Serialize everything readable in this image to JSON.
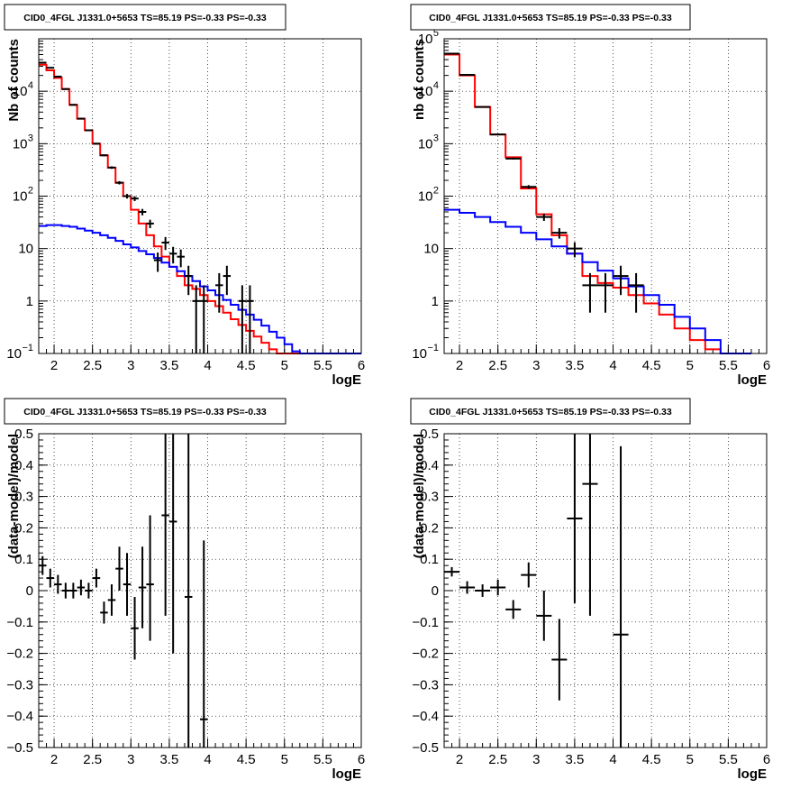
{
  "chart_data": [
    {
      "type": "step",
      "title": "CID0_4FGL J1331.0+5653 TS=85.19 PS=-0.33 PS=-0.33",
      "xlabel": "logE",
      "ylabel": "Nb of counts",
      "xlim": [
        1.8,
        6.0
      ],
      "ylim": [
        0.1,
        100000
      ],
      "ylog": true,
      "grid": true,
      "x_ticks": [
        2,
        2.5,
        3,
        3.5,
        4,
        4.5,
        5,
        5.5,
        6
      ],
      "x_tick_labels": [
        "2",
        "2.5",
        "3",
        "3.5",
        "4",
        "4.5",
        "5",
        "5.5",
        "6"
      ],
      "y_ticks": [
        0.1,
        1,
        10,
        100,
        1000,
        10000
      ],
      "y_tick_labels": [
        {
          "base": "10",
          "exp": "−1"
        },
        {
          "base": "1",
          "exp": ""
        },
        {
          "base": "10",
          "exp": ""
        },
        {
          "base": "10",
          "exp": "2"
        },
        {
          "base": "10",
          "exp": "3"
        },
        {
          "base": "10",
          "exp": "4"
        }
      ],
      "bin_edges": [
        1.8,
        1.9,
        2.0,
        2.1,
        2.2,
        2.3,
        2.4,
        2.5,
        2.6,
        2.7,
        2.8,
        2.9,
        3.0,
        3.1,
        3.2,
        3.3,
        3.4,
        3.5,
        3.6,
        3.7,
        3.8,
        3.9,
        4.0,
        4.1,
        4.2,
        4.3,
        4.4,
        4.5,
        4.6,
        4.7,
        4.8,
        4.9,
        5.0,
        5.1,
        5.2,
        5.3,
        5.4,
        5.5,
        5.6,
        5.7,
        5.8,
        5.9,
        6.0
      ],
      "series": [
        {
          "color": "#ff0000",
          "values": [
            32000,
            25000,
            18000,
            11000,
            5500,
            3000,
            1800,
            1000,
            600,
            350,
            180,
            100,
            55,
            30,
            18,
            11,
            7,
            4.5,
            3,
            2,
            1.7,
            1.3,
            1.0,
            0.8,
            0.6,
            0.45,
            0.35,
            0.27,
            0.21,
            0.16,
            0.12,
            0.1,
            0.1,
            0.1,
            0.1,
            0.1,
            0.1,
            0.1,
            0.1,
            0.1,
            0.1,
            0.1
          ]
        },
        {
          "color": "#0000ff",
          "values": [
            27,
            28,
            28,
            27,
            26,
            24,
            22,
            20,
            18,
            16,
            14,
            12,
            10.5,
            9,
            7.8,
            6.6,
            5.4,
            4.5,
            3.7,
            3.0,
            2.4,
            1.9,
            1.6,
            1.3,
            1.05,
            0.85,
            0.68,
            0.55,
            0.44,
            0.34,
            0.26,
            0.2,
            0.15,
            0.11,
            0.1,
            0.1,
            0.1,
            0.1,
            0.1,
            0.1,
            0.1,
            0.1
          ]
        }
      ],
      "points": [
        {
          "x": 1.85,
          "y": 35000,
          "xerr": 0.05,
          "yerr_lo": 190,
          "yerr_hi": 190
        },
        {
          "x": 1.95,
          "y": 28000,
          "xerr": 0.05,
          "yerr_lo": 170,
          "yerr_hi": 170
        },
        {
          "x": 2.05,
          "y": 19000,
          "xerr": 0.05,
          "yerr_lo": 140,
          "yerr_hi": 140
        },
        {
          "x": 2.15,
          "y": 11000,
          "xerr": 0.05,
          "yerr_lo": 105,
          "yerr_hi": 105
        },
        {
          "x": 2.25,
          "y": 5500,
          "xerr": 0.05,
          "yerr_lo": 74,
          "yerr_hi": 74
        },
        {
          "x": 2.35,
          "y": 3000,
          "xerr": 0.05,
          "yerr_lo": 55,
          "yerr_hi": 55
        },
        {
          "x": 2.45,
          "y": 1800,
          "xerr": 0.05,
          "yerr_lo": 42,
          "yerr_hi": 42
        },
        {
          "x": 2.55,
          "y": 1000,
          "xerr": 0.05,
          "yerr_lo": 32,
          "yerr_hi": 32
        },
        {
          "x": 2.65,
          "y": 600,
          "xerr": 0.05,
          "yerr_lo": 24,
          "yerr_hi": 24
        },
        {
          "x": 2.75,
          "y": 350,
          "xerr": 0.05,
          "yerr_lo": 19,
          "yerr_hi": 19
        },
        {
          "x": 2.85,
          "y": 180,
          "xerr": 0.05,
          "yerr_lo": 13,
          "yerr_hi": 13
        },
        {
          "x": 2.95,
          "y": 100,
          "xerr": 0.05,
          "yerr_lo": 10,
          "yerr_hi": 10
        },
        {
          "x": 3.05,
          "y": 90,
          "xerr": 0.05,
          "yerr_lo": 9.5,
          "yerr_hi": 9.5
        },
        {
          "x": 3.15,
          "y": 50,
          "xerr": 0.05,
          "yerr_lo": 7,
          "yerr_hi": 7
        },
        {
          "x": 3.25,
          "y": 30,
          "xerr": 0.05,
          "yerr_lo": 5.5,
          "yerr_hi": 5.5
        },
        {
          "x": 3.35,
          "y": 6,
          "xerr": 0.05,
          "yerr_lo": 2.4,
          "yerr_hi": 2.4
        },
        {
          "x": 3.45,
          "y": 13,
          "xerr": 0.05,
          "yerr_lo": 3.6,
          "yerr_hi": 3.6
        },
        {
          "x": 3.55,
          "y": 8,
          "xerr": 0.05,
          "yerr_lo": 2.8,
          "yerr_hi": 2.8
        },
        {
          "x": 3.65,
          "y": 7,
          "xerr": 0.05,
          "yerr_lo": 2.6,
          "yerr_hi": 2.6
        },
        {
          "x": 3.75,
          "y": 3,
          "xerr": 0.05,
          "yerr_lo": 1.7,
          "yerr_hi": 1.7
        },
        {
          "x": 3.85,
          "y": 1,
          "xerr": 0.05,
          "yerr_lo": 1,
          "yerr_hi": 1
        },
        {
          "x": 3.95,
          "y": 1,
          "xerr": 0.05,
          "yerr_lo": 1,
          "yerr_hi": 1
        },
        {
          "x": 4.15,
          "y": 2,
          "xerr": 0.05,
          "yerr_lo": 1.4,
          "yerr_hi": 1.4
        },
        {
          "x": 4.25,
          "y": 3,
          "xerr": 0.05,
          "yerr_lo": 1.7,
          "yerr_hi": 1.7
        },
        {
          "x": 4.45,
          "y": 1,
          "xerr": 0.05,
          "yerr_lo": 1,
          "yerr_hi": 1
        },
        {
          "x": 4.55,
          "y": 1,
          "xerr": 0.05,
          "yerr_lo": 1,
          "yerr_hi": 1
        }
      ]
    },
    {
      "type": "step",
      "title": "CID0_4FGL J1331.0+5653 TS=85.19 PS=-0.33 PS=-0.33",
      "xlabel": "logE",
      "ylabel": "nb of counts",
      "xlim": [
        1.8,
        6.0
      ],
      "ylim": [
        0.1,
        100000
      ],
      "ylog": true,
      "grid": true,
      "x_ticks": [
        2,
        2.5,
        3,
        3.5,
        4,
        4.5,
        5,
        5.5,
        6
      ],
      "x_tick_labels": [
        "2",
        "2.5",
        "3",
        "3.5",
        "4",
        "4.5",
        "5",
        "5.5",
        "6"
      ],
      "y_ticks": [
        0.1,
        1,
        10,
        100,
        1000,
        10000,
        100000
      ],
      "y_tick_labels": [
        {
          "base": "10",
          "exp": "−1"
        },
        {
          "base": "1",
          "exp": ""
        },
        {
          "base": "10",
          "exp": ""
        },
        {
          "base": "10",
          "exp": "2"
        },
        {
          "base": "10",
          "exp": "3"
        },
        {
          "base": "10",
          "exp": "4"
        },
        {
          "base": "10",
          "exp": "5"
        }
      ],
      "bin_edges": [
        1.8,
        2.0,
        2.2,
        2.4,
        2.6,
        2.8,
        3.0,
        3.2,
        3.4,
        3.6,
        3.8,
        4.0,
        4.2,
        4.4,
        4.6,
        4.8,
        5.0,
        5.2,
        5.4,
        5.6,
        5.8,
        6.0
      ],
      "series": [
        {
          "color": "#ff0000",
          "values": [
            50000,
            20000,
            5000,
            1500,
            550,
            140,
            45,
            18,
            8,
            3,
            2.2,
            1.8,
            1.3,
            0.9,
            0.55,
            0.3,
            0.18,
            0.12,
            0.1,
            0.1
          ]
        },
        {
          "color": "#0000ff",
          "values": [
            55,
            48,
            40,
            32,
            26,
            20,
            15,
            11,
            8,
            5.5,
            3.8,
            2.7,
            1.9,
            1.3,
            0.85,
            0.5,
            0.3,
            0.18,
            0.1,
            0.1
          ]
        }
      ],
      "points": [
        {
          "x": 1.9,
          "y": 52000,
          "xerr": 0.1,
          "yerr_lo": 230,
          "yerr_hi": 230
        },
        {
          "x": 2.1,
          "y": 20500,
          "xerr": 0.1,
          "yerr_lo": 143,
          "yerr_hi": 143
        },
        {
          "x": 2.3,
          "y": 5000,
          "xerr": 0.1,
          "yerr_lo": 71,
          "yerr_hi": 71
        },
        {
          "x": 2.5,
          "y": 1500,
          "xerr": 0.1,
          "yerr_lo": 39,
          "yerr_hi": 39
        },
        {
          "x": 2.7,
          "y": 520,
          "xerr": 0.1,
          "yerr_lo": 23,
          "yerr_hi": 23
        },
        {
          "x": 2.9,
          "y": 150,
          "xerr": 0.1,
          "yerr_lo": 12,
          "yerr_hi": 12
        },
        {
          "x": 3.1,
          "y": 40,
          "xerr": 0.1,
          "yerr_lo": 6.3,
          "yerr_hi": 6.3
        },
        {
          "x": 3.3,
          "y": 20,
          "xerr": 0.1,
          "yerr_lo": 4.5,
          "yerr_hi": 4.5
        },
        {
          "x": 3.5,
          "y": 10,
          "xerr": 0.1,
          "yerr_lo": 3.2,
          "yerr_hi": 3.2
        },
        {
          "x": 3.7,
          "y": 2,
          "xerr": 0.1,
          "yerr_lo": 1.4,
          "yerr_hi": 1.4
        },
        {
          "x": 3.9,
          "y": 2,
          "xerr": 0.1,
          "yerr_lo": 1.4,
          "yerr_hi": 1.4
        },
        {
          "x": 4.1,
          "y": 3,
          "xerr": 0.1,
          "yerr_lo": 1.7,
          "yerr_hi": 1.7
        },
        {
          "x": 4.3,
          "y": 2,
          "xerr": 0.1,
          "yerr_lo": 1.4,
          "yerr_hi": 1.4
        }
      ]
    },
    {
      "type": "scatter",
      "title": "CID0_4FGL J1331.0+5653 TS=85.19 PS=-0.33 PS=-0.33",
      "xlabel": "logE",
      "ylabel": "(data-model)/model",
      "xlim": [
        1.8,
        6.0
      ],
      "ylim": [
        -0.5,
        0.5
      ],
      "ylog": false,
      "grid": true,
      "x_ticks": [
        2,
        2.5,
        3,
        3.5,
        4,
        4.5,
        5,
        5.5,
        6
      ],
      "x_tick_labels": [
        "2",
        "2.5",
        "3",
        "3.5",
        "4",
        "4.5",
        "5",
        "5.5",
        "6"
      ],
      "y_ticks": [
        -0.5,
        -0.4,
        -0.3,
        -0.2,
        -0.1,
        0,
        0.1,
        0.2,
        0.3,
        0.4,
        0.5
      ],
      "y_tick_labels": [
        {
          "base": "−0.5",
          "exp": ""
        },
        {
          "base": "−0.4",
          "exp": ""
        },
        {
          "base": "−0.3",
          "exp": ""
        },
        {
          "base": "−0.2",
          "exp": ""
        },
        {
          "base": "−0.1",
          "exp": ""
        },
        {
          "base": "0",
          "exp": ""
        },
        {
          "base": "0.1",
          "exp": ""
        },
        {
          "base": "0.2",
          "exp": ""
        },
        {
          "base": "0.3",
          "exp": ""
        },
        {
          "base": "0.4",
          "exp": ""
        },
        {
          "base": "0.5",
          "exp": ""
        }
      ],
      "points": [
        {
          "x": 1.85,
          "y": 0.08,
          "xerr": 0.05,
          "yerr_lo": 0.03,
          "yerr_hi": 0.03
        },
        {
          "x": 1.95,
          "y": 0.04,
          "xerr": 0.05,
          "yerr_lo": 0.03,
          "yerr_hi": 0.03
        },
        {
          "x": 2.05,
          "y": 0.02,
          "xerr": 0.05,
          "yerr_lo": 0.03,
          "yerr_hi": 0.03
        },
        {
          "x": 2.15,
          "y": 0.0,
          "xerr": 0.05,
          "yerr_lo": 0.025,
          "yerr_hi": 0.025
        },
        {
          "x": 2.25,
          "y": 0.0,
          "xerr": 0.05,
          "yerr_lo": 0.025,
          "yerr_hi": 0.025
        },
        {
          "x": 2.35,
          "y": 0.01,
          "xerr": 0.05,
          "yerr_lo": 0.025,
          "yerr_hi": 0.025
        },
        {
          "x": 2.45,
          "y": 0.0,
          "xerr": 0.05,
          "yerr_lo": 0.025,
          "yerr_hi": 0.025
        },
        {
          "x": 2.55,
          "y": 0.04,
          "xerr": 0.05,
          "yerr_lo": 0.03,
          "yerr_hi": 0.03
        },
        {
          "x": 2.65,
          "y": -0.07,
          "xerr": 0.05,
          "yerr_lo": 0.035,
          "yerr_hi": 0.035
        },
        {
          "x": 2.75,
          "y": -0.03,
          "xerr": 0.05,
          "yerr_lo": 0.05,
          "yerr_hi": 0.05
        },
        {
          "x": 2.85,
          "y": 0.07,
          "xerr": 0.05,
          "yerr_lo": 0.07,
          "yerr_hi": 0.07
        },
        {
          "x": 2.95,
          "y": 0.02,
          "xerr": 0.05,
          "yerr_lo": 0.1,
          "yerr_hi": 0.1
        },
        {
          "x": 3.05,
          "y": -0.12,
          "xerr": 0.05,
          "yerr_lo": 0.1,
          "yerr_hi": 0.1
        },
        {
          "x": 3.15,
          "y": 0.01,
          "xerr": 0.05,
          "yerr_lo": 0.13,
          "yerr_hi": 0.13
        },
        {
          "x": 3.25,
          "y": 0.02,
          "xerr": 0.05,
          "yerr_lo": 0.18,
          "yerr_hi": 0.22
        },
        {
          "x": 3.45,
          "y": 0.24,
          "xerr": 0.05,
          "yerr_lo": 0.32,
          "yerr_hi": 0.3
        },
        {
          "x": 3.55,
          "y": 0.22,
          "xerr": 0.05,
          "yerr_lo": 0.42,
          "yerr_hi": 0.3
        },
        {
          "x": 3.75,
          "y": -0.02,
          "xerr": 0.05,
          "yerr_lo": 0.6,
          "yerr_hi": 0.6
        },
        {
          "x": 3.95,
          "y": -0.41,
          "xerr": 0.05,
          "yerr_lo": 0.2,
          "yerr_hi": 0.57
        }
      ]
    },
    {
      "type": "scatter",
      "title": "CID0_4FGL J1331.0+5653 TS=85.19 PS=-0.33 PS=-0.33",
      "xlabel": "logE",
      "ylabel": "(data-model)/model",
      "xlim": [
        1.8,
        6.0
      ],
      "ylim": [
        -0.5,
        0.5
      ],
      "ylog": false,
      "grid": true,
      "x_ticks": [
        2,
        2.5,
        3,
        3.5,
        4,
        4.5,
        5,
        5.5,
        6
      ],
      "x_tick_labels": [
        "2",
        "2.5",
        "3",
        "3.5",
        "4",
        "4.5",
        "5",
        "5.5",
        "6"
      ],
      "y_ticks": [
        -0.5,
        -0.4,
        -0.3,
        -0.2,
        -0.1,
        0,
        0.1,
        0.2,
        0.3,
        0.4,
        0.5
      ],
      "y_tick_labels": [
        {
          "base": "−0.5",
          "exp": ""
        },
        {
          "base": "−0.4",
          "exp": ""
        },
        {
          "base": "−0.3",
          "exp": ""
        },
        {
          "base": "−0.2",
          "exp": ""
        },
        {
          "base": "−0.1",
          "exp": ""
        },
        {
          "base": "0",
          "exp": ""
        },
        {
          "base": "0.1",
          "exp": ""
        },
        {
          "base": "0.2",
          "exp": ""
        },
        {
          "base": "0.3",
          "exp": ""
        },
        {
          "base": "0.4",
          "exp": ""
        },
        {
          "base": "0.5",
          "exp": ""
        }
      ],
      "points": [
        {
          "x": 1.9,
          "y": 0.06,
          "xerr": 0.1,
          "yerr_lo": 0.015,
          "yerr_hi": 0.015
        },
        {
          "x": 2.1,
          "y": 0.01,
          "xerr": 0.1,
          "yerr_lo": 0.02,
          "yerr_hi": 0.02
        },
        {
          "x": 2.3,
          "y": 0.0,
          "xerr": 0.1,
          "yerr_lo": 0.02,
          "yerr_hi": 0.02
        },
        {
          "x": 2.5,
          "y": 0.01,
          "xerr": 0.1,
          "yerr_lo": 0.025,
          "yerr_hi": 0.025
        },
        {
          "x": 2.7,
          "y": -0.06,
          "xerr": 0.1,
          "yerr_lo": 0.03,
          "yerr_hi": 0.03
        },
        {
          "x": 2.9,
          "y": 0.05,
          "xerr": 0.1,
          "yerr_lo": 0.04,
          "yerr_hi": 0.04
        },
        {
          "x": 3.1,
          "y": -0.08,
          "xerr": 0.1,
          "yerr_lo": 0.08,
          "yerr_hi": 0.08
        },
        {
          "x": 3.3,
          "y": -0.22,
          "xerr": 0.1,
          "yerr_lo": 0.13,
          "yerr_hi": 0.13
        },
        {
          "x": 3.5,
          "y": 0.23,
          "xerr": 0.1,
          "yerr_lo": 0.27,
          "yerr_hi": 0.27
        },
        {
          "x": 3.7,
          "y": 0.34,
          "xerr": 0.1,
          "yerr_lo": 0.42,
          "yerr_hi": 0.5
        },
        {
          "x": 4.1,
          "y": -0.14,
          "xerr": 0.1,
          "yerr_lo": 0.5,
          "yerr_hi": 0.6
        }
      ]
    }
  ]
}
